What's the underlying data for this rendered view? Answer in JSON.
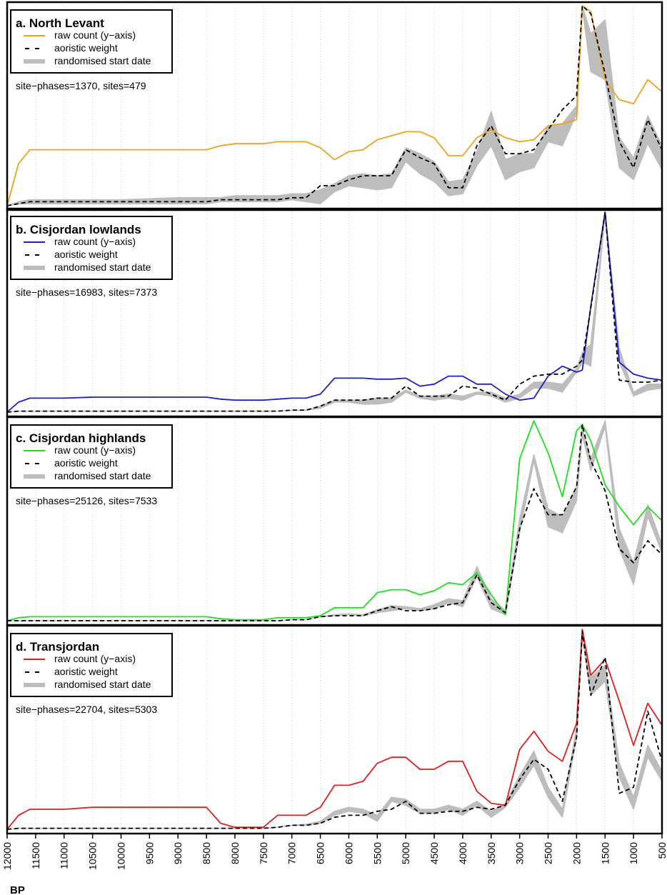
{
  "figure": {
    "x_axis_label": "BP",
    "x_ticks": [
      12000,
      11500,
      11000,
      10500,
      10000,
      9500,
      9000,
      8500,
      8000,
      7500,
      7000,
      6500,
      6000,
      5500,
      5000,
      4500,
      4000,
      3500,
      3000,
      2500,
      2000,
      1500,
      1000,
      500
    ]
  },
  "chart_data": [
    {
      "type": "line",
      "panel_title": "a. North Levant",
      "summary": "site−phases=1370, sites=479",
      "color": "#f0a11e",
      "xlim": [
        12000,
        500
      ],
      "ylim": [
        0,
        1
      ],
      "legend": [
        {
          "label": "raw count (y−axis)",
          "style": "solid"
        },
        {
          "label": "aoristic weight",
          "style": "dashed"
        },
        {
          "label": "randomised start date",
          "style": "band"
        }
      ],
      "x": [
        12000,
        11800,
        11600,
        11400,
        11000,
        10500,
        10000,
        9000,
        8500,
        8250,
        8000,
        7500,
        7250,
        7000,
        6750,
        6500,
        6250,
        6000,
        5750,
        5500,
        5250,
        5000,
        4750,
        4500,
        4250,
        4000,
        3750,
        3500,
        3250,
        3000,
        2750,
        2500,
        2250,
        2000,
        1900,
        1750,
        1500,
        1250,
        1000,
        750,
        500
      ],
      "series": [
        {
          "name": "raw count (y−axis)",
          "values": [
            0,
            0.21,
            0.28,
            0.28,
            0.28,
            0.28,
            0.28,
            0.28,
            0.28,
            0.3,
            0.31,
            0.31,
            0.32,
            0.32,
            0.32,
            0.29,
            0.23,
            0.27,
            0.28,
            0.33,
            0.35,
            0.37,
            0.37,
            0.34,
            0.25,
            0.25,
            0.34,
            0.38,
            0.34,
            0.32,
            0.33,
            0.4,
            0.41,
            0.43,
            1.0,
            0.97,
            0.63,
            0.53,
            0.51,
            0.63,
            0.57
          ]
        },
        {
          "name": "aoristic weight",
          "values": [
            0,
            0.01,
            0.02,
            0.02,
            0.02,
            0.02,
            0.02,
            0.02,
            0.02,
            0.03,
            0.03,
            0.03,
            0.03,
            0.04,
            0.04,
            0.1,
            0.1,
            0.13,
            0.15,
            0.15,
            0.15,
            0.28,
            0.24,
            0.21,
            0.09,
            0.09,
            0.3,
            0.4,
            0.26,
            0.26,
            0.28,
            0.38,
            0.48,
            0.55,
            1.0,
            0.96,
            0.66,
            0.32,
            0.19,
            0.43,
            0.28
          ]
        },
        {
          "name": "randomised start date",
          "band_low": [
            0,
            0.01,
            0.01,
            0.01,
            0.01,
            0.01,
            0.01,
            0.01,
            0.01,
            0.02,
            0.02,
            0.02,
            0.02,
            0.03,
            0.02,
            0.01,
            0.07,
            0.1,
            0.09,
            0.08,
            0.09,
            0.22,
            0.16,
            0.12,
            0.05,
            0.06,
            0.2,
            0.3,
            0.13,
            0.17,
            0.19,
            0.32,
            0.3,
            0.46,
            0.99,
            0.67,
            0.63,
            0.19,
            0.13,
            0.31,
            0.18
          ],
          "band_high": [
            0,
            0.02,
            0.03,
            0.03,
            0.03,
            0.03,
            0.03,
            0.04,
            0.04,
            0.04,
            0.05,
            0.05,
            0.05,
            0.06,
            0.06,
            0.08,
            0.11,
            0.15,
            0.16,
            0.15,
            0.16,
            0.29,
            0.26,
            0.22,
            0.12,
            0.13,
            0.27,
            0.47,
            0.23,
            0.26,
            0.26,
            0.4,
            0.41,
            0.5,
            1.0,
            0.86,
            0.93,
            0.34,
            0.24,
            0.45,
            0.3
          ]
        }
      ]
    },
    {
      "type": "line",
      "panel_title": "b. Cisjordan lowlands",
      "summary": "site−phases=16983, sites=7373",
      "color": "#1f1fc9",
      "xlim": [
        12000,
        500
      ],
      "ylim": [
        0,
        1
      ],
      "legend": [
        {
          "label": "raw count (y−axis)",
          "style": "solid"
        },
        {
          "label": "aoristic weight",
          "style": "dashed"
        },
        {
          "label": "randomised start date",
          "style": "band"
        }
      ],
      "x": [
        12000,
        11800,
        11600,
        11400,
        11000,
        10500,
        10000,
        9000,
        8500,
        8250,
        8000,
        7500,
        7250,
        7000,
        6750,
        6500,
        6250,
        6000,
        5750,
        5500,
        5250,
        5000,
        4750,
        4500,
        4250,
        4000,
        3750,
        3500,
        3250,
        3000,
        2750,
        2500,
        2250,
        2000,
        1900,
        1750,
        1500,
        1250,
        1000,
        750,
        500
      ],
      "series": [
        {
          "name": "raw count (y−axis)",
          "values": [
            0,
            0.05,
            0.07,
            0.07,
            0.07,
            0.075,
            0.075,
            0.075,
            0.075,
            0.065,
            0.06,
            0.06,
            0.065,
            0.07,
            0.07,
            0.09,
            0.17,
            0.17,
            0.17,
            0.165,
            0.165,
            0.17,
            0.13,
            0.14,
            0.18,
            0.18,
            0.14,
            0.14,
            0.09,
            0.06,
            0.07,
            0.18,
            0.23,
            0.2,
            0.21,
            0.53,
            1.0,
            0.25,
            0.19,
            0.17,
            0.16
          ]
        },
        {
          "name": "aoristic weight",
          "values": [
            0,
            0.005,
            0.005,
            0.005,
            0.005,
            0.005,
            0.005,
            0.005,
            0.005,
            0.005,
            0.005,
            0.005,
            0.005,
            0.01,
            0.01,
            0.03,
            0.06,
            0.06,
            0.06,
            0.07,
            0.07,
            0.13,
            0.08,
            0.08,
            0.08,
            0.13,
            0.12,
            0.09,
            0.06,
            0.14,
            0.18,
            0.19,
            0.19,
            0.23,
            0.26,
            0.52,
            1.0,
            0.16,
            0.15,
            0.15,
            0.16
          ]
        },
        {
          "name": "randomised start date",
          "band_low": [
            0,
            0.005,
            0.005,
            0.005,
            0.005,
            0.005,
            0.005,
            0.005,
            0.005,
            0.005,
            0.005,
            0.005,
            0.005,
            0.01,
            0.01,
            0.02,
            0.05,
            0.05,
            0.04,
            0.04,
            0.05,
            0.1,
            0.07,
            0.06,
            0.07,
            0.06,
            0.09,
            0.08,
            0.05,
            0.07,
            0.12,
            0.12,
            0.1,
            0.2,
            0.25,
            0.23,
            0.99,
            0.25,
            0.08,
            0.11,
            0.12
          ],
          "band_high": [
            0,
            0.005,
            0.005,
            0.005,
            0.005,
            0.005,
            0.005,
            0.005,
            0.005,
            0.005,
            0.005,
            0.005,
            0.005,
            0.01,
            0.01,
            0.03,
            0.06,
            0.06,
            0.06,
            0.07,
            0.07,
            0.11,
            0.08,
            0.08,
            0.09,
            0.08,
            0.1,
            0.1,
            0.07,
            0.09,
            0.15,
            0.15,
            0.14,
            0.22,
            0.3,
            0.34,
            1.0,
            0.32,
            0.1,
            0.14,
            0.14
          ]
        }
      ]
    },
    {
      "type": "line",
      "panel_title": "c. Cisjordan highlands",
      "summary": "site−phases=25126, sites=7533",
      "color": "#1fe01f",
      "xlim": [
        12000,
        500
      ],
      "ylim": [
        0,
        1
      ],
      "legend": [
        {
          "label": "raw count (y−axis)",
          "style": "solid"
        },
        {
          "label": "aoristic weight",
          "style": "dashed"
        },
        {
          "label": "randomised start date",
          "style": "band"
        }
      ],
      "x": [
        12000,
        11800,
        11600,
        11400,
        11000,
        10500,
        10000,
        9000,
        8500,
        8250,
        8000,
        7500,
        7250,
        7000,
        6750,
        6500,
        6250,
        6000,
        5750,
        5500,
        5250,
        5000,
        4750,
        4500,
        4250,
        4000,
        3750,
        3500,
        3250,
        3000,
        2750,
        2500,
        2250,
        2000,
        1900,
        1750,
        1500,
        1250,
        1000,
        750,
        500
      ],
      "series": [
        {
          "name": "raw count (y−axis)",
          "values": [
            0,
            0.015,
            0.02,
            0.02,
            0.02,
            0.02,
            0.02,
            0.02,
            0.02,
            0.01,
            0.005,
            0.005,
            0.015,
            0.015,
            0.015,
            0.025,
            0.065,
            0.065,
            0.065,
            0.14,
            0.155,
            0.155,
            0.13,
            0.15,
            0.19,
            0.18,
            0.24,
            0.13,
            0.03,
            0.81,
            1.0,
            0.84,
            0.62,
            0.95,
            0.98,
            0.9,
            0.68,
            0.57,
            0.48,
            0.57,
            0.5
          ]
        },
        {
          "name": "aoristic weight",
          "values": [
            0,
            0,
            0,
            0,
            0,
            0,
            0,
            0,
            0,
            0,
            0,
            0,
            0,
            0.005,
            0.005,
            0.02,
            0.025,
            0.025,
            0.025,
            0.05,
            0.07,
            0.05,
            0.05,
            0.06,
            0.08,
            0.09,
            0.23,
            0.09,
            0.04,
            0.46,
            0.66,
            0.53,
            0.53,
            0.67,
            0.98,
            0.8,
            0.65,
            0.36,
            0.29,
            0.4,
            0.33
          ]
        },
        {
          "name": "randomised start date",
          "band_low": [
            0,
            0,
            0,
            0,
            0,
            0,
            0,
            0,
            0,
            0,
            0,
            0,
            0,
            0.005,
            0.005,
            0.02,
            0.025,
            0.03,
            0.025,
            0.04,
            0.05,
            0.06,
            0.05,
            0.06,
            0.09,
            0.07,
            0.22,
            0.06,
            0.03,
            0.44,
            0.8,
            0.47,
            0.44,
            0.6,
            0.93,
            0.75,
            0.97,
            0.36,
            0.18,
            0.52,
            0.34
          ],
          "band_high": [
            0,
            0,
            0,
            0,
            0,
            0,
            0,
            0,
            0,
            0,
            0,
            0,
            0,
            0.005,
            0.005,
            0.02,
            0.03,
            0.035,
            0.03,
            0.055,
            0.075,
            0.07,
            0.06,
            0.08,
            0.11,
            0.1,
            0.27,
            0.11,
            0.05,
            0.51,
            0.83,
            0.56,
            0.52,
            0.67,
            0.96,
            0.81,
            1.0,
            0.46,
            0.29,
            0.58,
            0.38
          ]
        }
      ]
    },
    {
      "type": "line",
      "panel_title": "d. Transjordan",
      "summary": "site−phases=22704, sites=5303",
      "color": "#e01f1f",
      "xlim": [
        12000,
        500
      ],
      "ylim": [
        0,
        1
      ],
      "legend": [
        {
          "label": "raw count (y−axis)",
          "style": "solid"
        },
        {
          "label": "aoristic weight",
          "style": "dashed"
        },
        {
          "label": "randomised start date",
          "style": "band"
        }
      ],
      "x": [
        12000,
        11800,
        11600,
        11400,
        11000,
        10500,
        10000,
        9000,
        8500,
        8250,
        8000,
        7500,
        7250,
        7000,
        6750,
        6500,
        6250,
        6000,
        5750,
        5500,
        5250,
        5000,
        4750,
        4500,
        4250,
        4000,
        3750,
        3500,
        3250,
        3000,
        2750,
        2500,
        2250,
        2000,
        1900,
        1750,
        1500,
        1250,
        1000,
        750,
        500
      ],
      "series": [
        {
          "name": "raw count (y−axis)",
          "values": [
            0,
            0.07,
            0.1,
            0.1,
            0.1,
            0.11,
            0.11,
            0.11,
            0.11,
            0.03,
            0.01,
            0.01,
            0.07,
            0.07,
            0.07,
            0.11,
            0.22,
            0.22,
            0.24,
            0.33,
            0.36,
            0.36,
            0.3,
            0.3,
            0.34,
            0.34,
            0.19,
            0.13,
            0.12,
            0.4,
            0.49,
            0.39,
            0.34,
            0.53,
            1.0,
            0.77,
            0.85,
            0.64,
            0.42,
            0.63,
            0.52
          ]
        },
        {
          "name": "aoristic weight",
          "values": [
            0,
            0.005,
            0.005,
            0.005,
            0.005,
            0.005,
            0.005,
            0.005,
            0.005,
            0.005,
            0.005,
            0.005,
            0.01,
            0.02,
            0.02,
            0.03,
            0.06,
            0.07,
            0.07,
            0.09,
            0.1,
            0.14,
            0.08,
            0.08,
            0.09,
            0.09,
            0.11,
            0.1,
            0.12,
            0.25,
            0.35,
            0.3,
            0.14,
            0.46,
            0.99,
            0.67,
            0.86,
            0.18,
            0.21,
            0.59,
            0.34
          ]
        },
        {
          "name": "randomised start date",
          "band_low": [
            0,
            0.005,
            0.005,
            0.005,
            0.005,
            0.005,
            0.005,
            0.005,
            0.005,
            0.005,
            0.005,
            0.005,
            0.01,
            0.02,
            0.02,
            0.03,
            0.07,
            0.09,
            0.08,
            0.04,
            0.14,
            0.12,
            0.08,
            0.08,
            0.1,
            0.07,
            0.12,
            0.06,
            0.11,
            0.21,
            0.32,
            0.16,
            0.06,
            0.46,
            0.97,
            0.67,
            0.74,
            0.26,
            0.1,
            0.36,
            0.24
          ],
          "band_high": [
            0,
            0.005,
            0.005,
            0.005,
            0.005,
            0.005,
            0.005,
            0.005,
            0.005,
            0.005,
            0.005,
            0.005,
            0.01,
            0.02,
            0.025,
            0.04,
            0.09,
            0.11,
            0.1,
            0.07,
            0.16,
            0.15,
            0.1,
            0.1,
            0.12,
            0.1,
            0.14,
            0.09,
            0.13,
            0.27,
            0.39,
            0.21,
            0.1,
            0.51,
            1.0,
            0.76,
            0.82,
            0.33,
            0.16,
            0.42,
            0.29
          ]
        }
      ]
    }
  ]
}
